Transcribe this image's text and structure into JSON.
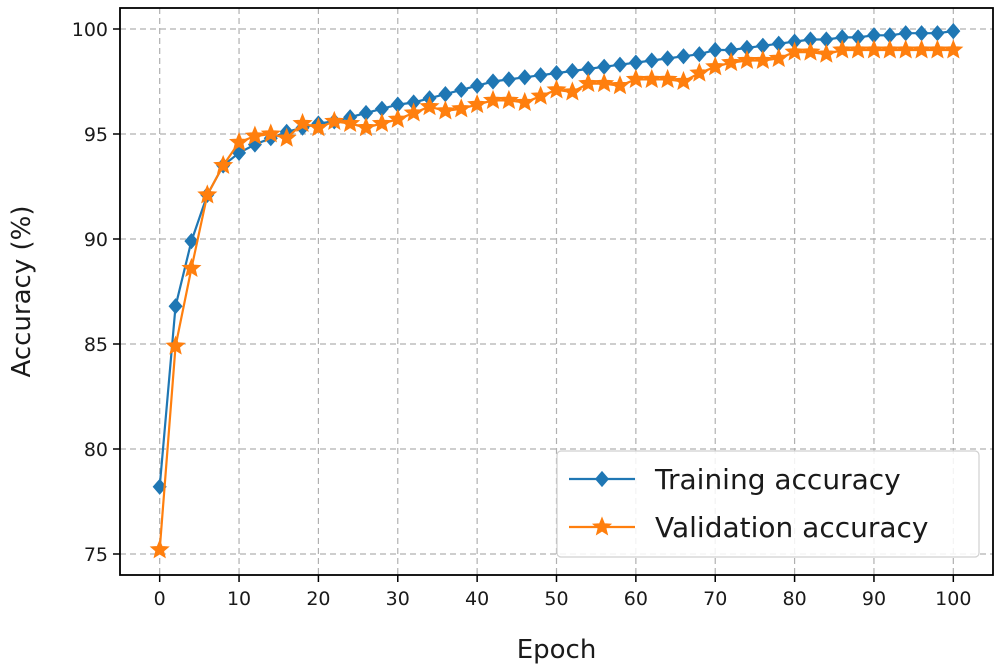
{
  "chart_data": {
    "type": "line",
    "title": "",
    "xlabel": "Epoch",
    "ylabel": "Accuracy (%)",
    "xlim": [
      -5,
      105
    ],
    "ylim": [
      74,
      101
    ],
    "xticks": [
      0,
      10,
      20,
      30,
      40,
      50,
      60,
      70,
      80,
      90,
      100
    ],
    "yticks": [
      75,
      80,
      85,
      90,
      95,
      100
    ],
    "grid": true,
    "legend_position": "lower-right",
    "series": [
      {
        "name": "Training accuracy",
        "color": "#1f77b4",
        "marker": "diamond",
        "x": [
          0,
          2,
          4,
          6,
          8,
          10,
          12,
          14,
          16,
          18,
          20,
          22,
          24,
          26,
          28,
          30,
          32,
          34,
          36,
          38,
          40,
          42,
          44,
          46,
          48,
          50,
          52,
          54,
          56,
          58,
          60,
          62,
          64,
          66,
          68,
          70,
          72,
          74,
          76,
          78,
          80,
          82,
          84,
          86,
          88,
          90,
          92,
          94,
          96,
          98,
          100
        ],
        "values": [
          78.2,
          86.8,
          89.9,
          92.1,
          93.5,
          94.1,
          94.5,
          94.8,
          95.1,
          95.3,
          95.5,
          95.6,
          95.8,
          96.0,
          96.2,
          96.4,
          96.5,
          96.7,
          96.9,
          97.1,
          97.3,
          97.5,
          97.6,
          97.7,
          97.8,
          97.9,
          98.0,
          98.1,
          98.2,
          98.3,
          98.4,
          98.5,
          98.6,
          98.7,
          98.8,
          99.0,
          99.0,
          99.1,
          99.2,
          99.3,
          99.4,
          99.5,
          99.5,
          99.6,
          99.6,
          99.7,
          99.7,
          99.8,
          99.8,
          99.8,
          99.9
        ]
      },
      {
        "name": "Validation accuracy",
        "color": "#ff7f0e",
        "marker": "star",
        "x": [
          0,
          2,
          4,
          6,
          8,
          10,
          12,
          14,
          16,
          18,
          20,
          22,
          24,
          26,
          28,
          30,
          32,
          34,
          36,
          38,
          40,
          42,
          44,
          46,
          48,
          50,
          52,
          54,
          56,
          58,
          60,
          62,
          64,
          66,
          68,
          70,
          72,
          74,
          76,
          78,
          80,
          82,
          84,
          86,
          88,
          90,
          92,
          94,
          96,
          98,
          100
        ],
        "values": [
          75.2,
          84.9,
          88.6,
          92.1,
          93.5,
          94.6,
          94.9,
          95.0,
          94.8,
          95.5,
          95.3,
          95.6,
          95.5,
          95.3,
          95.5,
          95.7,
          96.0,
          96.3,
          96.1,
          96.2,
          96.4,
          96.6,
          96.6,
          96.5,
          96.8,
          97.1,
          97.0,
          97.4,
          97.4,
          97.3,
          97.6,
          97.6,
          97.6,
          97.5,
          97.9,
          98.2,
          98.4,
          98.5,
          98.5,
          98.6,
          98.9,
          98.9,
          98.8,
          99.0,
          99.0,
          99.0,
          99.0,
          99.0,
          99.0,
          99.0,
          99.0
        ]
      }
    ]
  }
}
